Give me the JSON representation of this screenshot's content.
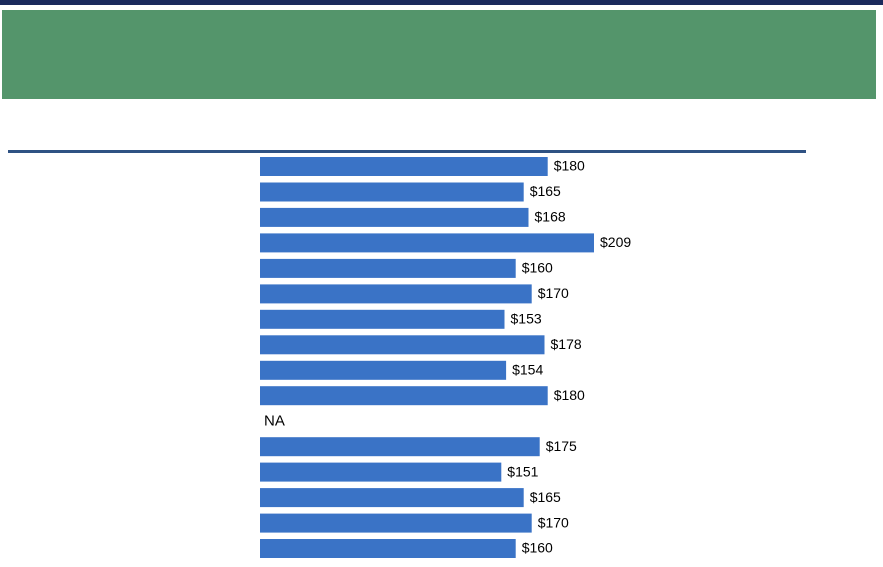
{
  "colors": {
    "top_rule": "#1b2a5c",
    "banner": "#54956b",
    "divider": "#2f5283",
    "bar": "#3a73c6",
    "label": "#000000"
  },
  "chart_data": {
    "type": "bar",
    "orientation": "horizontal",
    "title": "",
    "xlabel": "",
    "ylabel": "",
    "categories": [
      "",
      "",
      "",
      "",
      "",
      "",
      "",
      "",
      "",
      "",
      "",
      "",
      "",
      "",
      "",
      ""
    ],
    "values": [
      180,
      165,
      168,
      209,
      160,
      170,
      153,
      178,
      154,
      180,
      null,
      175,
      151,
      165,
      170,
      160
    ],
    "labels": [
      "$180",
      "$165",
      "$168",
      "$209",
      "$160",
      "$170",
      "$153",
      "$178",
      "$154",
      "$180",
      "NA",
      "$175",
      "$151",
      "$165",
      "$170",
      "$160"
    ],
    "xlim": [
      0,
      209
    ],
    "grid": false,
    "legend": "none"
  }
}
